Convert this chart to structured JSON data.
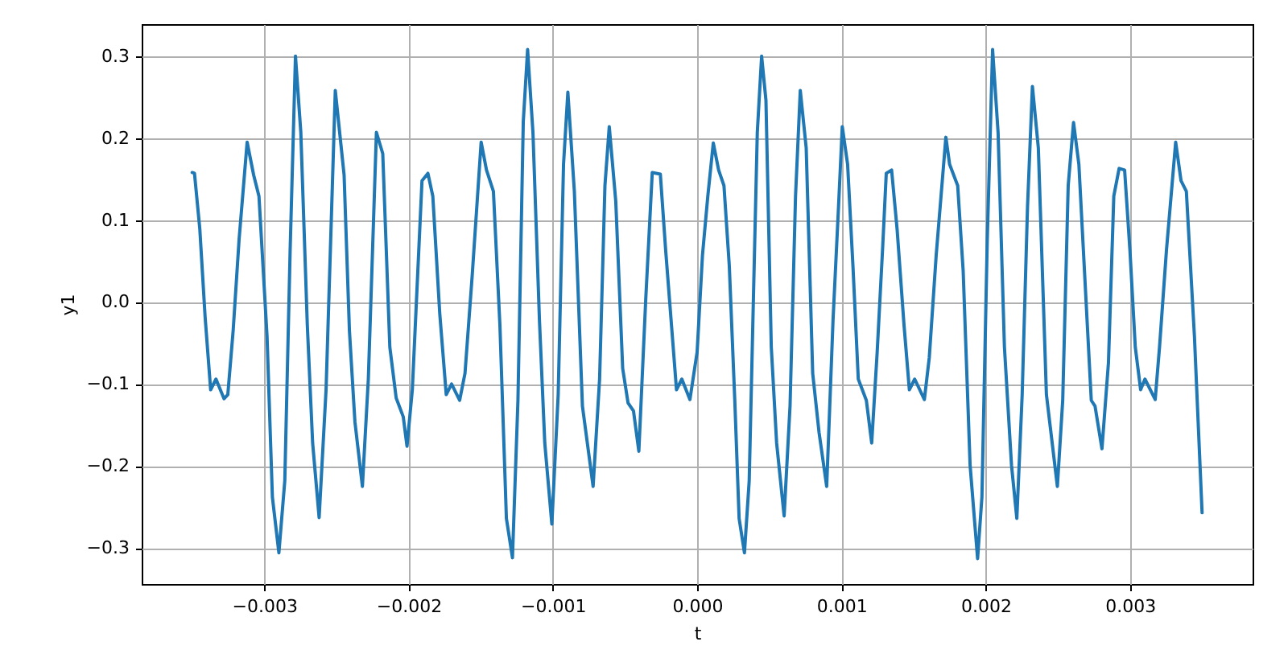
{
  "chart_data": {
    "type": "line",
    "xlabel": "t",
    "ylabel": "y1",
    "grid": true,
    "xlim": [
      -0.00385,
      0.00385
    ],
    "ylim": [
      -0.344,
      0.339
    ],
    "xticks": [
      {
        "value": -0.003,
        "label": "−0.003"
      },
      {
        "value": -0.002,
        "label": "−0.002"
      },
      {
        "value": -0.001,
        "label": "−0.001"
      },
      {
        "value": 0,
        "label": "0.000"
      },
      {
        "value": 0.001,
        "label": "0.001"
      },
      {
        "value": 0.002,
        "label": "0.002"
      },
      {
        "value": 0.003,
        "label": "0.003"
      }
    ],
    "yticks": [
      {
        "value": -0.3,
        "label": "−0.3"
      },
      {
        "value": -0.2,
        "label": "−0.2"
      },
      {
        "value": -0.1,
        "label": "−0.1"
      },
      {
        "value": 0,
        "label": "0.0"
      },
      {
        "value": 0.1,
        "label": "0.1"
      },
      {
        "value": 0.2,
        "label": "0.2"
      },
      {
        "value": 0.3,
        "label": "0.3"
      }
    ],
    "series": [
      {
        "color": "#1f77b4",
        "x": [
          -0.0035,
          -0.003484,
          -0.003447,
          -0.00341,
          -0.003372,
          -0.003335,
          -0.003279,
          -0.003253,
          -0.003216,
          -0.003175,
          -0.003119,
          -0.003074,
          -0.003037,
          -0.002981,
          -0.002944,
          -0.002899,
          -0.002858,
          -0.002821,
          -0.002784,
          -0.002747,
          -0.002702,
          -0.002665,
          -0.00262,
          -0.002572,
          -0.002508,
          -0.002447,
          -0.00241,
          -0.002372,
          -0.00232,
          -0.002279,
          -0.002223,
          -0.002179,
          -0.00213,
          -0.002086,
          -0.002037,
          -0.002011,
          -0.001974,
          -0.001907,
          -0.001866,
          -0.001832,
          -0.001784,
          -0.001739,
          -0.001702,
          -0.001646,
          -0.001609,
          -0.00156,
          -0.001497,
          -0.00146,
          -0.001412,
          -0.001367,
          -0.001322,
          -0.00128,
          -0.001242,
          -0.001205,
          -0.001175,
          -0.001138,
          -0.001093,
          -0.001056,
          -0.001007,
          -0.000963,
          -0.000926,
          -0.000896,
          -0.000851,
          -0.000795,
          -0.000721,
          -0.000676,
          -0.000639,
          -0.000609,
          -0.000564,
          -0.000516,
          -0.000479,
          -0.000441,
          -0.000404,
          -0.000356,
          -0.000311,
          -0.000255,
          -0.000218,
          -0.000169,
          -0.000143,
          -0.000106,
          -5e-05,
          0,
          3.7e-05,
          7.4e-05,
          0.000112,
          0.000149,
          0.000186,
          0.000223,
          0.000261,
          0.000291,
          0.000328,
          0.000361,
          0.000391,
          0.000417,
          0.000447,
          0.000477,
          0.000514,
          0.000551,
          0.000603,
          0.000644,
          0.000682,
          0.000715,
          0.000756,
          0.000801,
          0.000845,
          0.000898,
          0.000942,
          0.00098,
          0.001006,
          0.001043,
          0.00108,
          0.001117,
          0.001173,
          0.00121,
          0.001248,
          0.001285,
          0.001311,
          0.001348,
          0.001386,
          0.001434,
          0.001471,
          0.001508,
          0.001575,
          0.001609,
          0.001657,
          0.001724,
          0.00175,
          0.001806,
          0.001844,
          0.001892,
          0.001944,
          0.001974,
          0.002011,
          0.002048,
          0.002086,
          0.00213,
          0.002179,
          0.002216,
          0.002253,
          0.00229,
          0.002324,
          0.002365,
          0.002421,
          0.002497,
          0.002534,
          0.002572,
          0.002609,
          0.002646,
          0.002683,
          0.002732,
          0.002758,
          0.002806,
          0.002851,
          0.002888,
          0.002925,
          0.002963,
          0.003,
          0.003037,
          0.003074,
          0.003104,
          0.003175,
          0.003205,
          0.003253,
          0.003317,
          0.003354,
          0.003391,
          0.003447,
          0.0035
        ],
        "values": [
          0.158,
          0.157,
          0.089,
          -0.019,
          -0.107,
          -0.094,
          -0.118,
          -0.113,
          -0.035,
          0.076,
          0.195,
          0.155,
          0.129,
          -0.042,
          -0.238,
          -0.306,
          -0.218,
          0.063,
          0.3,
          0.207,
          -0.028,
          -0.172,
          -0.263,
          -0.107,
          0.258,
          0.155,
          -0.035,
          -0.146,
          -0.225,
          -0.094,
          0.207,
          0.181,
          -0.055,
          -0.117,
          -0.14,
          -0.176,
          -0.107,
          0.148,
          0.157,
          0.129,
          -0.014,
          -0.113,
          -0.1,
          -0.12,
          -0.087,
          0.03,
          0.195,
          0.161,
          0.135,
          -0.028,
          -0.264,
          -0.312,
          -0.12,
          0.22,
          0.308,
          0.207,
          -0.022,
          -0.172,
          -0.271,
          -0.113,
          0.168,
          0.256,
          0.135,
          -0.127,
          -0.225,
          -0.094,
          0.142,
          0.214,
          0.123,
          -0.081,
          -0.123,
          -0.133,
          -0.182,
          0.004,
          0.158,
          0.156,
          0.063,
          -0.048,
          -0.107,
          -0.094,
          -0.119,
          -0.061,
          0.057,
          0.129,
          0.194,
          0.161,
          0.142,
          0.044,
          -0.12,
          -0.264,
          -0.306,
          -0.218,
          0.011,
          0.207,
          0.3,
          0.246,
          -0.055,
          -0.172,
          -0.261,
          -0.127,
          0.129,
          0.258,
          0.188,
          -0.087,
          -0.159,
          -0.225,
          -0.022,
          0.116,
          0.214,
          0.168,
          0.044,
          -0.094,
          -0.12,
          -0.172,
          -0.061,
          0.063,
          0.157,
          0.161,
          0.089,
          -0.028,
          -0.107,
          -0.094,
          -0.119,
          -0.068,
          0.057,
          0.201,
          0.168,
          0.142,
          0.038,
          -0.199,
          -0.313,
          -0.238,
          0.076,
          0.308,
          0.207,
          -0.055,
          -0.199,
          -0.264,
          -0.113,
          0.116,
          0.263,
          0.188,
          -0.113,
          -0.225,
          -0.12,
          0.142,
          0.219,
          0.168,
          0.044,
          -0.12,
          -0.127,
          -0.179,
          -0.074,
          0.129,
          0.163,
          0.161,
          0.063,
          -0.055,
          -0.107,
          -0.094,
          -0.119,
          -0.055,
          0.063,
          0.195,
          0.148,
          0.135,
          -0.042,
          -0.257
        ]
      }
    ]
  }
}
